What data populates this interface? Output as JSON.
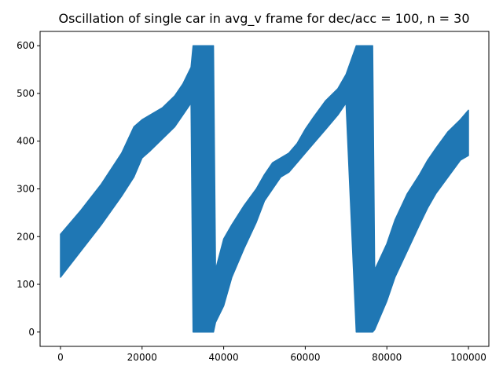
{
  "chart_data": {
    "type": "area",
    "title": "Oscillation of single car in avg_v frame for dec/acc = 100, n = 30",
    "xlabel": "",
    "ylabel": "",
    "xlim": [
      -5000,
      105000
    ],
    "ylim": [
      -30,
      630
    ],
    "xticks": [
      0,
      20000,
      40000,
      60000,
      80000,
      100000
    ],
    "yticks": [
      0,
      100,
      200,
      300,
      400,
      500,
      600
    ],
    "grid": false,
    "legend": "none",
    "series": [
      {
        "color": "#1f77b4",
        "points": [
          [
            0,
            115,
            205
          ],
          [
            5000,
            170,
            255
          ],
          [
            10000,
            225,
            310
          ],
          [
            15000,
            285,
            375
          ],
          [
            18000,
            325,
            430
          ],
          [
            20000,
            365,
            445
          ],
          [
            22000,
            380,
            455
          ],
          [
            25000,
            405,
            470
          ],
          [
            28000,
            430,
            495
          ],
          [
            30000,
            455,
            520
          ],
          [
            32000,
            480,
            555
          ],
          [
            32500,
            0,
            600
          ],
          [
            37500,
            0,
            600
          ],
          [
            38000,
            20,
            130
          ],
          [
            40000,
            55,
            195
          ],
          [
            42000,
            115,
            225
          ],
          [
            45000,
            175,
            265
          ],
          [
            48000,
            230,
            300
          ],
          [
            50000,
            275,
            330
          ],
          [
            52000,
            300,
            355
          ],
          [
            54000,
            325,
            365
          ],
          [
            56000,
            335,
            375
          ],
          [
            58000,
            355,
            395
          ],
          [
            60000,
            375,
            425
          ],
          [
            62000,
            395,
            450
          ],
          [
            65000,
            425,
            485
          ],
          [
            68000,
            455,
            510
          ],
          [
            70000,
            480,
            540
          ],
          [
            72500,
            0,
            600
          ],
          [
            76500,
            0,
            600
          ],
          [
            77000,
            5,
            130
          ],
          [
            80000,
            65,
            185
          ],
          [
            82000,
            115,
            235
          ],
          [
            85000,
            170,
            290
          ],
          [
            88000,
            225,
            330
          ],
          [
            90000,
            260,
            360
          ],
          [
            92000,
            290,
            385
          ],
          [
            95000,
            325,
            420
          ],
          [
            98000,
            360,
            445
          ],
          [
            100000,
            370,
            465
          ]
        ]
      }
    ]
  }
}
